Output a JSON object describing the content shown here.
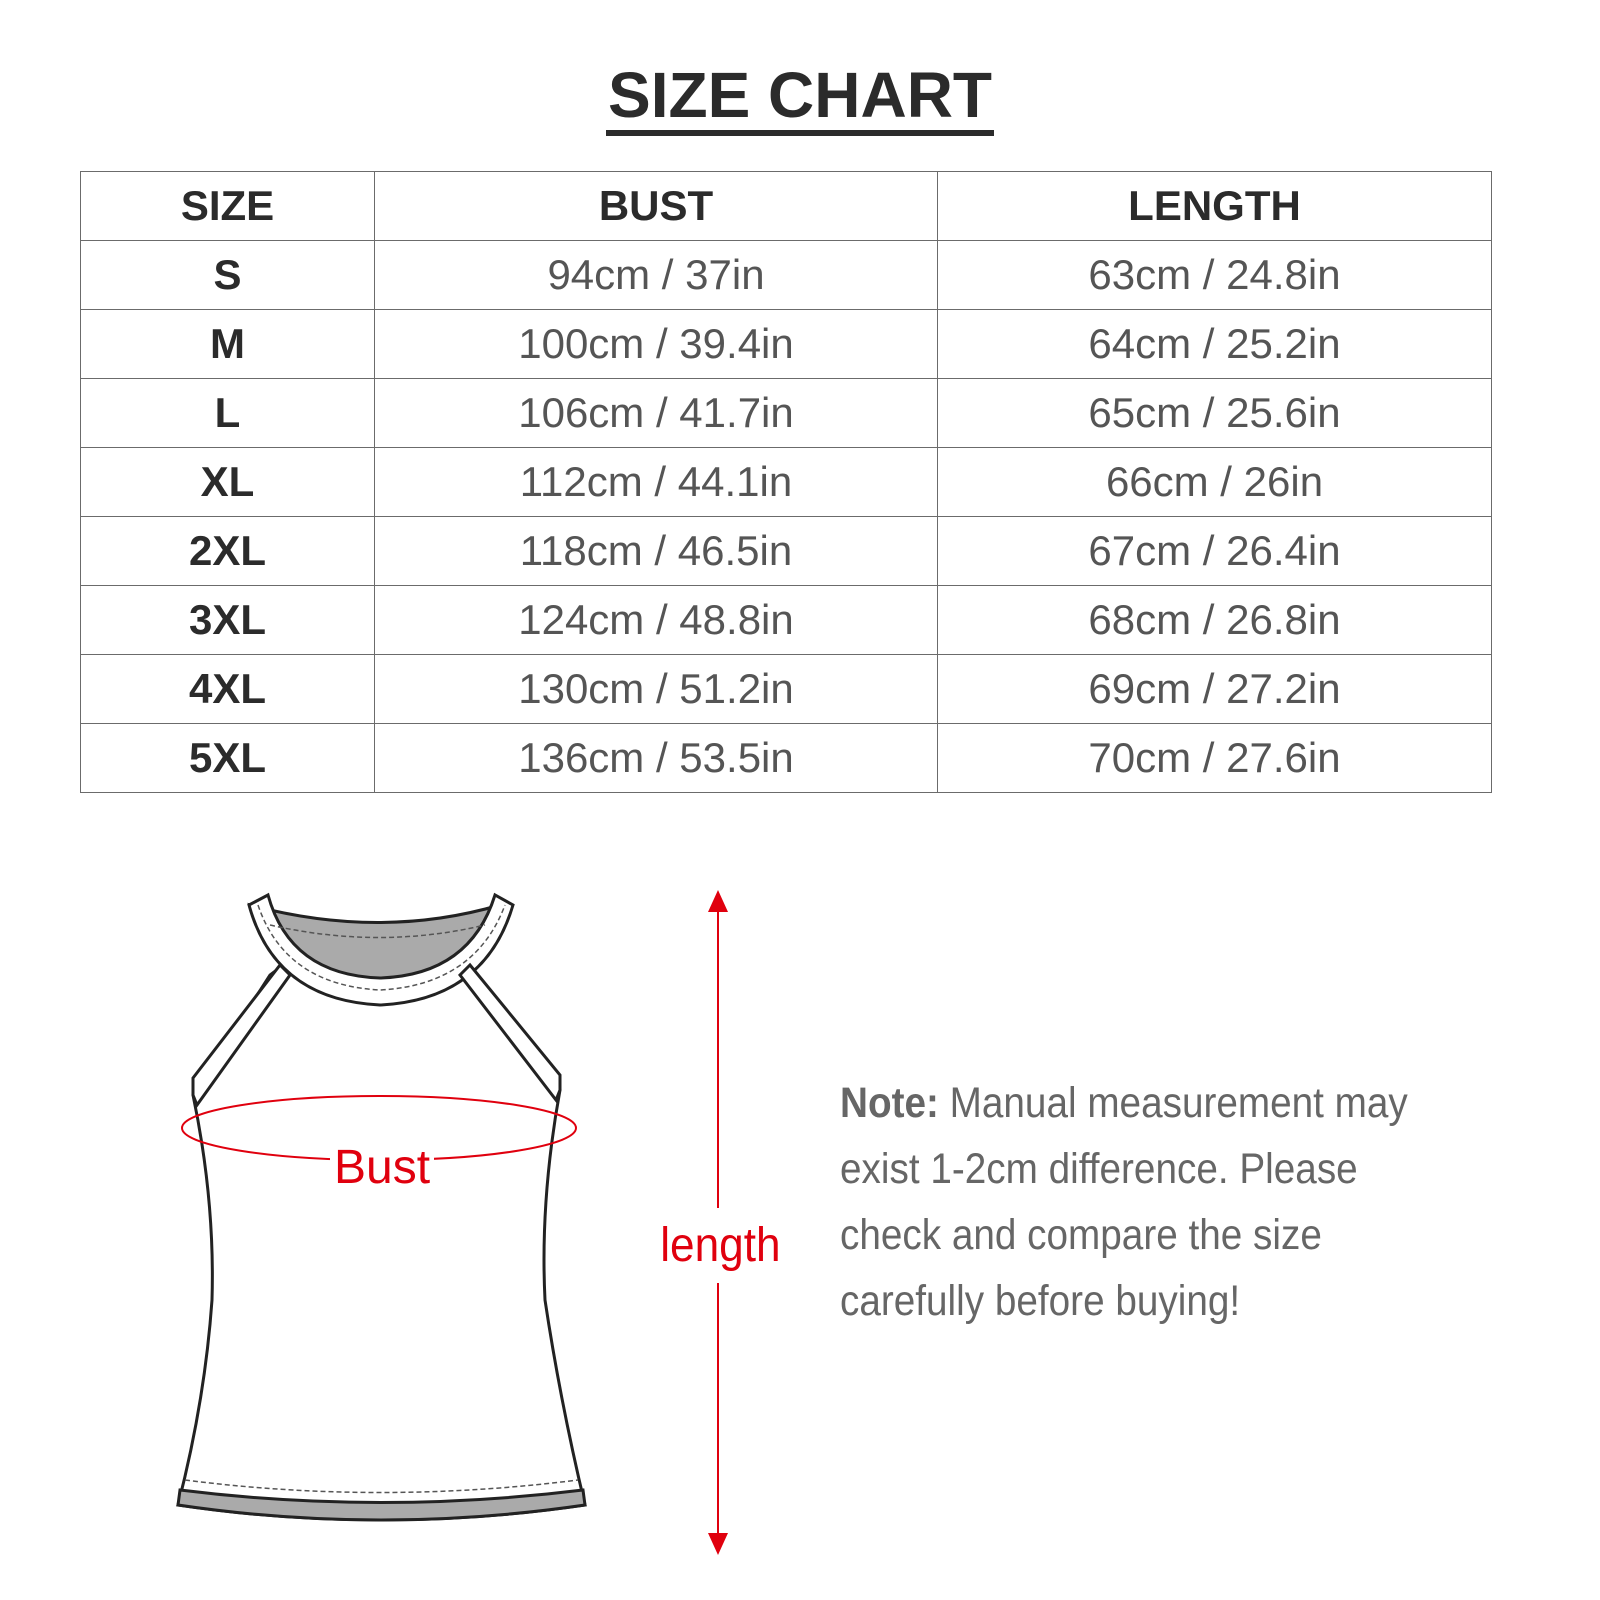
{
  "title": "SIZE CHART",
  "table": {
    "headers": [
      "SIZE",
      "BUST",
      "LENGTH"
    ],
    "rows": [
      [
        "S",
        "94cm / 37in",
        "63cm / 24.8in"
      ],
      [
        "M",
        "100cm / 39.4in",
        "64cm / 25.2in"
      ],
      [
        "L",
        "106cm / 41.7in",
        "65cm / 25.6in"
      ],
      [
        "XL",
        "112cm / 44.1in",
        "66cm / 26in"
      ],
      [
        "2XL",
        "118cm / 46.5in",
        "67cm / 26.4in"
      ],
      [
        "3XL",
        "124cm / 48.8in",
        "68cm / 26.8in"
      ],
      [
        "4XL",
        "130cm / 51.2in",
        "69cm / 27.2in"
      ],
      [
        "5XL",
        "136cm / 53.5in",
        "70cm / 27.6in"
      ]
    ]
  },
  "diagram": {
    "bust_label": "Bust",
    "length_label": "length",
    "accent_color": "#e0000e"
  },
  "note": {
    "label": "Note:",
    "text": " Manual measurement may exist 1-2cm difference. Please check and compare the size carefully before buying!"
  }
}
